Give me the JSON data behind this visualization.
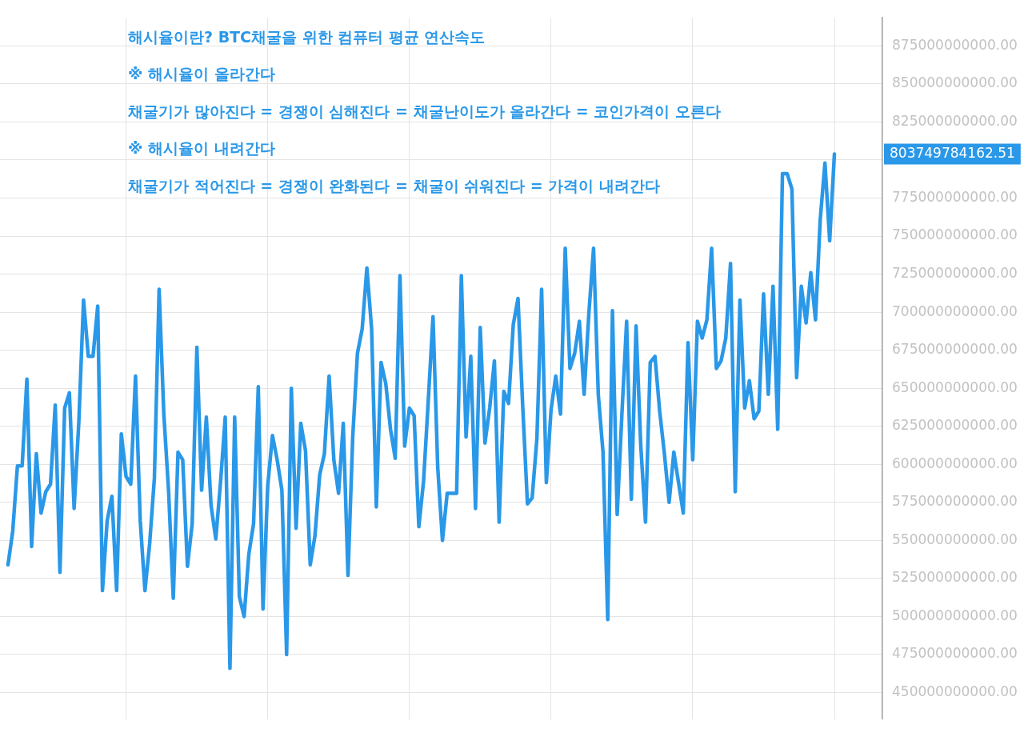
{
  "chart_data": {
    "type": "line",
    "categories": [
      null,
      null,
      null,
      null,
      null,
      null,
      null,
      null,
      null,
      null,
      null,
      null,
      null,
      null,
      null,
      null,
      null,
      null,
      null,
      null,
      null,
      null,
      null,
      null,
      null,
      null,
      null,
      null,
      null,
      null,
      null,
      null,
      null,
      null,
      null,
      null,
      null,
      null,
      null,
      null,
      null,
      null,
      null,
      null,
      null,
      null,
      null,
      null,
      null,
      null,
      null,
      null,
      null,
      null,
      null,
      null,
      null,
      null,
      null,
      null,
      null,
      null,
      null,
      null,
      null,
      null,
      null,
      null,
      null,
      null,
      null,
      null,
      null,
      null,
      null,
      null,
      null,
      null,
      null,
      null,
      null,
      null,
      null,
      null,
      null,
      null,
      null,
      null,
      null,
      null,
      null,
      null,
      null,
      null,
      null,
      null,
      null,
      null,
      null,
      null,
      null,
      null,
      null,
      null,
      null,
      null,
      null,
      null,
      null,
      null,
      null,
      null,
      null,
      null,
      null,
      null,
      null,
      null,
      null,
      null,
      null,
      null,
      null,
      null,
      null,
      null,
      null,
      null,
      null,
      null,
      null,
      null,
      null,
      null,
      null,
      null,
      null,
      null,
      null,
      null,
      null,
      null,
      null,
      null,
      null,
      null,
      null,
      null,
      null,
      null,
      null,
      null,
      null,
      null,
      null,
      null,
      null,
      null,
      null,
      null,
      null,
      null,
      null,
      null,
      null,
      null,
      null,
      null,
      null,
      null,
      null,
      null,
      null,
      null,
      null,
      null
    ],
    "series": [
      {
        "color": "#2a98e8",
        "values": [
          534000000000.0,
          556000000000.0,
          599000000000.0,
          599000000000.0,
          656000000000.0,
          546000000000.0,
          607000000000.0,
          568000000000.0,
          582000000000.0,
          587000000000.0,
          639000000000.0,
          529000000000.0,
          637000000000.0,
          647000000000.0,
          571000000000.0,
          628000000000.0,
          708000000000.0,
          671000000000.0,
          671000000000.0,
          704000000000.0,
          517000000000.0,
          563000000000.0,
          579000000000.0,
          517000000000.0,
          620000000000.0,
          592000000000.0,
          587000000000.0,
          658000000000.0,
          563000000000.0,
          517000000000.0,
          548000000000.0,
          591000000000.0,
          715000000000.0,
          633000000000.0,
          583000000000.0,
          512000000000.0,
          608000000000.0,
          603000000000.0,
          533000000000.0,
          561000000000.0,
          677000000000.0,
          583000000000.0,
          631000000000.0,
          573000000000.0,
          551000000000.0,
          588000000000.0,
          631000000000.0,
          466000000000.0,
          631000000000.0,
          513000000000.0,
          500000000000.0,
          541000000000.0,
          561000000000.0,
          651000000000.0,
          505000000000.0,
          586000000000.0,
          619000000000.0,
          603000000000.0,
          583000000000.0,
          475000000000.0,
          650000000000.0,
          558000000000.0,
          627000000000.0,
          609000000000.0,
          534000000000.0,
          553000000000.0,
          593000000000.0,
          607000000000.0,
          658000000000.0,
          603000000000.0,
          581000000000.0,
          627000000000.0,
          527000000000.0,
          618000000000.0,
          673000000000.0,
          689000000000.0,
          729000000000.0,
          689000000000.0,
          572000000000.0,
          667000000000.0,
          653000000000.0,
          623000000000.0,
          604000000000.0,
          724000000000.0,
          612000000000.0,
          637000000000.0,
          632000000000.0,
          559000000000.0,
          589000000000.0,
          642000000000.0,
          697000000000.0,
          598000000000.0,
          550000000000.0,
          581000000000.0,
          581000000000.0,
          581000000000.0,
          724000000000.0,
          618000000000.0,
          671000000000.0,
          571000000000.0,
          690000000000.0,
          614000000000.0,
          637000000000.0,
          668000000000.0,
          562000000000.0,
          648000000000.0,
          640000000000.0,
          692000000000.0,
          709000000000.0,
          638000000000.0,
          574000000000.0,
          578000000000.0,
          617000000000.0,
          715000000000.0,
          588000000000.0,
          636000000000.0,
          658000000000.0,
          633000000000.0,
          742000000000.0,
          663000000000.0,
          673000000000.0,
          694000000000.0,
          646000000000.0,
          699000000000.0,
          742000000000.0,
          646000000000.0,
          608000000000.0,
          498000000000.0,
          701000000000.0,
          567000000000.0,
          633000000000.0,
          694000000000.0,
          577000000000.0,
          691000000000.0,
          612000000000.0,
          562000000000.0,
          667000000000.0,
          671000000000.0,
          635000000000.0,
          607000000000.0,
          575000000000.0,
          608000000000.0,
          588000000000.0,
          568000000000.0,
          680000000000.0,
          603000000000.0,
          694000000000.0,
          683000000000.0,
          695000000000.0,
          742000000000.0,
          663000000000.0,
          668000000000.0,
          683000000000.0,
          732000000000.0,
          582000000000.0,
          708000000000.0,
          637000000000.0,
          655000000000.0,
          630000000000.0,
          635000000000.0,
          712000000000.0,
          646000000000.0,
          717000000000.0,
          623000000000.0,
          791000000000.0,
          791000000000.0,
          781000000000.0,
          657000000000.0,
          717000000000.0,
          693000000000.0,
          726000000000.0,
          695000000000.0,
          761000000000.0,
          798000000000.0,
          747000000000.0,
          804000000000.0
        ]
      }
    ],
    "ylim": [
      432500000000.0,
      893500000000.0
    ],
    "yticks": [
      {
        "value": 450000000000.0,
        "label": "450000000000.00"
      },
      {
        "value": 475000000000.0,
        "label": "475000000000.00"
      },
      {
        "value": 500000000000.0,
        "label": "500000000000.00"
      },
      {
        "value": 525000000000.0,
        "label": "525000000000.00"
      },
      {
        "value": 550000000000.0,
        "label": "550000000000.00"
      },
      {
        "value": 575000000000.0,
        "label": "575000000000.00"
      },
      {
        "value": 600000000000.0,
        "label": "600000000000.00"
      },
      {
        "value": 625000000000.0,
        "label": "625000000000.00"
      },
      {
        "value": 650000000000.0,
        "label": "650000000000.00"
      },
      {
        "value": 675000000000.0,
        "label": "675000000000.00"
      },
      {
        "value": 700000000000.0,
        "label": "700000000000.00"
      },
      {
        "value": 725000000000.0,
        "label": "725000000000.00"
      },
      {
        "value": 750000000000.0,
        "label": "750000000000.00"
      },
      {
        "value": 775000000000.0,
        "label": "775000000000.00"
      },
      {
        "value": 800000000000.0,
        "label": null
      },
      {
        "value": 825000000000.0,
        "label": "825000000000.00"
      },
      {
        "value": 850000000000.0,
        "label": "850000000000.00"
      },
      {
        "value": 875000000000.0,
        "label": "875000000000.00"
      }
    ],
    "annotations": [
      "해시율이란? BTC채굴을 위한 컴퓨터 평균 연산속도",
      "※ 해시율이 올라간다",
      "채굴기가 많아진다 = 경쟁이 심해진다 = 채굴난이도가 올라간다 = 코인가격이 오른다",
      "※ 해시율이 내려간다",
      "채굴기가 적어진다 = 경쟁이 완화된다 = 채굴이 쉬워진다 = 가격이 내려간다",
      "803749784162.51"
    ],
    "grid": true,
    "legend": false,
    "marker": "none",
    "line_style": "solid"
  }
}
